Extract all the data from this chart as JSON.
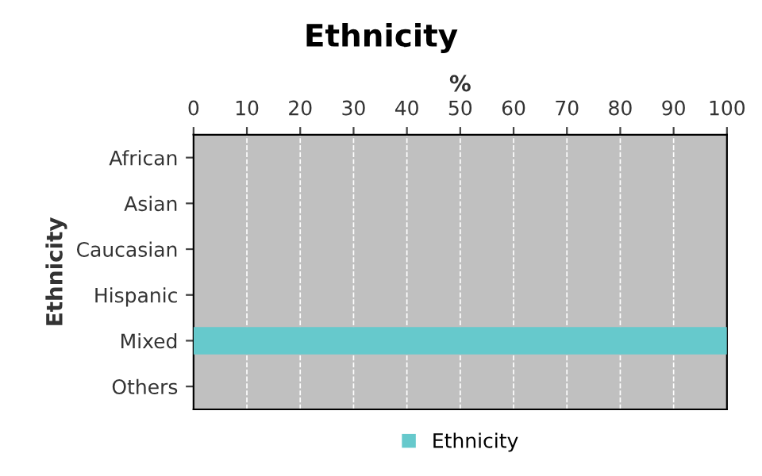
{
  "chart_data": {
    "type": "bar",
    "orientation": "horizontal",
    "title": "Ethnicity",
    "xlabel": "%",
    "ylabel": "Ethnicity",
    "categories": [
      "African",
      "Asian",
      "Caucasian",
      "Hispanic",
      "Mixed",
      "Others"
    ],
    "series": [
      {
        "name": "Ethnicity",
        "color": "#66c9cc",
        "values": [
          0,
          0,
          0,
          0,
          100,
          0
        ]
      }
    ],
    "xlim": [
      0,
      100
    ],
    "xticks": [
      0,
      10,
      20,
      30,
      40,
      50,
      60,
      70,
      80,
      90,
      100
    ],
    "grid": "x",
    "legend": "bottom"
  }
}
